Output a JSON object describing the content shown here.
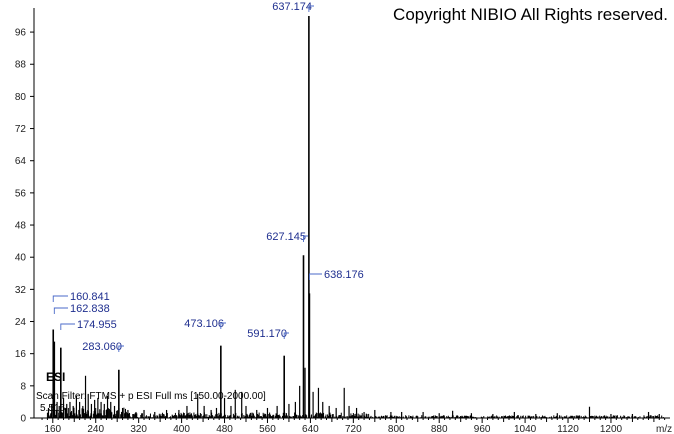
{
  "copyright": "Copyright NIBIO All Rights reserved.",
  "mode_label": "ESI",
  "scan_info": "Scan Filter: FTMS + p ESI Full ms [150.00-2000.00]",
  "time_label": "5.516",
  "chart_data": {
    "type": "bar",
    "xlabel": "m/z",
    "ylabel": "",
    "xlim": [
      125,
      1310
    ],
    "ylim": [
      0,
      100
    ],
    "x_ticks": [
      160,
      240,
      320,
      400,
      480,
      560,
      640,
      720,
      800,
      880,
      960,
      1040,
      1120,
      1200
    ],
    "y_ticks": [
      0,
      8,
      16,
      24,
      32,
      40,
      48,
      56,
      64,
      72,
      80,
      88,
      96
    ],
    "labeled_peaks": [
      {
        "mz": 637.174,
        "label": "637.174",
        "intensity": 100
      },
      {
        "mz": 627.145,
        "label": "627.145",
        "intensity": 40.5
      },
      {
        "mz": 638.176,
        "label": "638.176",
        "intensity": 31
      },
      {
        "mz": 160.841,
        "label": "160.841",
        "intensity": 22
      },
      {
        "mz": 162.838,
        "label": "162.838",
        "intensity": 19
      },
      {
        "mz": 174.955,
        "label": "174.955",
        "intensity": 17.5
      },
      {
        "mz": 473.106,
        "label": "473.106",
        "intensity": 18
      },
      {
        "mz": 591.17,
        "label": "591.170",
        "intensity": 15.5
      },
      {
        "mz": 283.06,
        "label": "283.060",
        "intensity": 12
      }
    ],
    "minor_peaks": [
      [
        152,
        2.5
      ],
      [
        158,
        3.5
      ],
      [
        168,
        4
      ],
      [
        172,
        3
      ],
      [
        180,
        5
      ],
      [
        186,
        3.5
      ],
      [
        192,
        4
      ],
      [
        198,
        3
      ],
      [
        204,
        5.5
      ],
      [
        210,
        4
      ],
      [
        216,
        3
      ],
      [
        221,
        10.5
      ],
      [
        226,
        6
      ],
      [
        232,
        3.5
      ],
      [
        238,
        4.5
      ],
      [
        244,
        5
      ],
      [
        250,
        4
      ],
      [
        256,
        3.5
      ],
      [
        262,
        5.5
      ],
      [
        268,
        4
      ],
      [
        275,
        3
      ],
      [
        290,
        2.5
      ],
      [
        300,
        2
      ],
      [
        315,
        1.5
      ],
      [
        330,
        2
      ],
      [
        350,
        1.5
      ],
      [
        372,
        2
      ],
      [
        395,
        2
      ],
      [
        410,
        3
      ],
      [
        430,
        6
      ],
      [
        442,
        3
      ],
      [
        455,
        2
      ],
      [
        465,
        2.5
      ],
      [
        480,
        5
      ],
      [
        492,
        3
      ],
      [
        500,
        7
      ],
      [
        512,
        6.5
      ],
      [
        520,
        3
      ],
      [
        540,
        2
      ],
      [
        560,
        2.5
      ],
      [
        578,
        3
      ],
      [
        600,
        3.5
      ],
      [
        612,
        4
      ],
      [
        620,
        8
      ],
      [
        630,
        12.5
      ],
      [
        645,
        6.5
      ],
      [
        655,
        7.5
      ],
      [
        663,
        4
      ],
      [
        675,
        3
      ],
      [
        688,
        2.5
      ],
      [
        703,
        7.5
      ],
      [
        712,
        3
      ],
      [
        726,
        2.5
      ],
      [
        740,
        1.5
      ],
      [
        760,
        2
      ],
      [
        790,
        1.5
      ],
      [
        810,
        1.5
      ],
      [
        850,
        1.5
      ],
      [
        880,
        1.2
      ],
      [
        905,
        1.8
      ],
      [
        940,
        1.2
      ],
      [
        980,
        1
      ],
      [
        1020,
        1.5
      ],
      [
        1060,
        1
      ],
      [
        1100,
        1.2
      ],
      [
        1160,
        2.8
      ],
      [
        1200,
        1
      ],
      [
        1240,
        1
      ],
      [
        1270,
        1.5
      ],
      [
        1290,
        1
      ]
    ]
  }
}
